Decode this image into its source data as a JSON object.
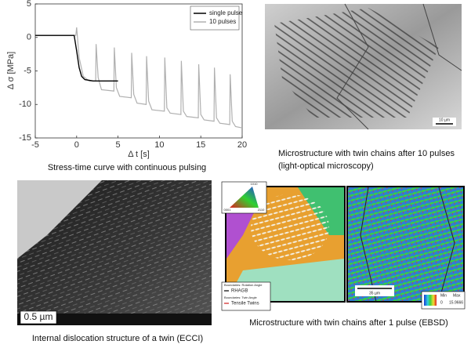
{
  "chart_data": {
    "type": "line",
    "x_label": "Δ t [s]",
    "y_label": "Δ σ [MPa]",
    "xlim": [
      -5,
      20
    ],
    "xticks": [
      -5,
      0,
      5,
      10,
      15,
      20
    ],
    "ylim": [
      -15,
      5
    ],
    "yticks": [
      -15,
      -10,
      -5,
      0,
      5
    ],
    "legend": "upper right",
    "series": [
      {
        "name": "single pulse",
        "color": "#000000",
        "x": [
          -5,
          -0.3,
          0,
          0.3,
          0.6,
          1,
          2,
          5
        ],
        "values": [
          0.3,
          0.3,
          -2,
          -4.5,
          -5.8,
          -6.3,
          -6.5,
          -6.5
        ]
      },
      {
        "name": "10 pulses",
        "color": "#b0b0b0",
        "x": [
          -5,
          -0.1,
          0,
          0.3,
          0.8,
          1.5,
          2.3,
          2.35,
          2.6,
          3.0,
          4.5,
          4.55,
          4.8,
          5.2,
          6.6,
          6.65,
          6.9,
          7.3,
          8.4,
          8.45,
          8.7,
          9.1,
          10.6,
          10.65,
          10.9,
          11.3,
          12.6,
          12.65,
          12.9,
          13.3,
          14.7,
          14.75,
          15.0,
          15.4,
          16.6,
          16.65,
          16.9,
          17.3,
          18.5,
          18.55,
          18.8,
          19.2,
          20
        ],
        "values": [
          0.3,
          0.3,
          1.5,
          -3,
          -5.8,
          -6.5,
          -6.5,
          -1,
          -6,
          -7.8,
          -8,
          -1.5,
          -7.5,
          -8.8,
          -9,
          -2.3,
          -8.5,
          -9.8,
          -10,
          -2.8,
          -9.5,
          -10.8,
          -11,
          -3,
          -10.5,
          -11.3,
          -11.5,
          -3.5,
          -11,
          -11.8,
          -12,
          -4,
          -11.5,
          -12.3,
          -12.5,
          -4.5,
          -12,
          -12.8,
          -13,
          -5.5,
          -12.5,
          -13.3,
          -13.5
        ]
      }
    ]
  },
  "captions": {
    "stress_time": "Stress-time curve with continuous pulsing",
    "optical": [
      "Microstructure with twin chains after 10 pulses",
      "(light-optical microscopy)"
    ],
    "ecci": "Internal dislocation structure of a twin (ECCI)",
    "ebsd": "Microstructure with twin chains after 1 pulse (EBSD)"
  },
  "optical_image": {
    "scale_bar": "10 µm"
  },
  "ecci_image": {
    "scale_bar": "0.5 µm"
  },
  "ebsd_image": {
    "ipf": [
      "0001",
      "2110",
      "1010"
    ],
    "boundary_legend": [
      {
        "heading": "Boundaries: Rotation Angle",
        "label": "RHAGB"
      },
      {
        "heading": "Boundaries: Twin Angle",
        "label": "Tensile Twins"
      }
    ],
    "scale_bar": "35 µm",
    "color_scale": {
      "min_label": "Min",
      "max_label": "Max",
      "min": 0,
      "max": 15.9666
    }
  }
}
